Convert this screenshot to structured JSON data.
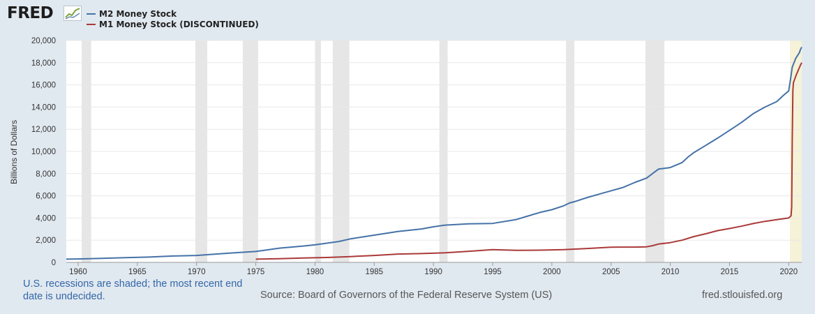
{
  "header": {
    "logo_text": "FRED",
    "logo_icon": "line-chart-icon"
  },
  "chart_data": {
    "type": "line",
    "title": "",
    "xlabel": "",
    "ylabel": "Billions of Dollars",
    "xlim": [
      1959,
      2021.1
    ],
    "ylim": [
      0,
      20000
    ],
    "yticks": [
      0,
      2000,
      4000,
      6000,
      8000,
      10000,
      12000,
      14000,
      16000,
      18000,
      20000
    ],
    "ytick_labels": [
      "0",
      "2,000",
      "4,000",
      "6,000",
      "8,000",
      "10,000",
      "12,000",
      "14,000",
      "16,000",
      "18,000",
      "20,000"
    ],
    "xticks": [
      1960,
      1965,
      1970,
      1975,
      1980,
      1985,
      1990,
      1995,
      2000,
      2005,
      2010,
      2015,
      2020
    ],
    "xtick_labels": [
      "1960",
      "1965",
      "1970",
      "1975",
      "1980",
      "1985",
      "1990",
      "1995",
      "2000",
      "2005",
      "2010",
      "2015",
      "2020"
    ],
    "grid": true,
    "recessions": [
      [
        1960.3,
        1961.1
      ],
      [
        1969.9,
        1970.9
      ],
      [
        1973.9,
        1975.2
      ],
      [
        1980.0,
        1980.5
      ],
      [
        1981.5,
        1982.9
      ],
      [
        1990.5,
        1991.2
      ],
      [
        2001.2,
        2001.9
      ],
      [
        2007.9,
        2009.5
      ]
    ],
    "pending_recession": [
      2020.1,
      2021.1
    ],
    "series": [
      {
        "name": "M2 Money Stock",
        "color": "#4572a7",
        "x": [
          1959,
          1960,
          1962,
          1964,
          1966,
          1968,
          1970,
          1971,
          1973,
          1975,
          1977,
          1979,
          1980,
          1982,
          1983,
          1985,
          1987,
          1989,
          1990,
          1991,
          1993,
          1995,
          1997,
          1998,
          1999,
          2000,
          2001,
          2001.5,
          2002,
          2003,
          2004,
          2005,
          2006,
          2007,
          2008,
          2008.5,
          2009,
          2010,
          2011,
          2011.5,
          2012,
          2013,
          2014,
          2015,
          2016,
          2017,
          2018,
          2019,
          2019.5,
          2020,
          2020.15,
          2020.3,
          2020.6,
          2020.9,
          2021.0,
          2021.1
        ],
        "values": [
          290,
          310,
          360,
          420,
          480,
          570,
          620,
          700,
          850,
          980,
          1280,
          1470,
          1580,
          1880,
          2120,
          2450,
          2780,
          3010,
          3210,
          3360,
          3480,
          3510,
          3860,
          4180,
          4500,
          4750,
          5100,
          5350,
          5500,
          5850,
          6150,
          6450,
          6750,
          7200,
          7600,
          8000,
          8400,
          8550,
          9000,
          9500,
          9900,
          10550,
          11200,
          11900,
          12600,
          13400,
          14000,
          14500,
          15000,
          15450,
          16500,
          17600,
          18400,
          18900,
          19200,
          19400
        ]
      },
      {
        "name": "M1 Money Stock (DISCONTINUED)",
        "color": "#aa3939",
        "x": [
          1975,
          1977,
          1979,
          1981,
          1983,
          1985,
          1987,
          1989,
          1991,
          1993,
          1995,
          1997,
          1999,
          2001,
          2003,
          2005,
          2007,
          2008,
          2008.5,
          2009,
          2010,
          2011,
          2012,
          2013,
          2014,
          2015,
          2016,
          2017,
          2018,
          2019,
          2020.0,
          2020.2,
          2020.25,
          2020.3,
          2020.35,
          2020.4,
          2020.6,
          2020.8,
          2021.0,
          2021.1
        ],
        "values": [
          290,
          330,
          390,
          440,
          520,
          620,
          750,
          790,
          860,
          1000,
          1150,
          1080,
          1100,
          1150,
          1250,
          1370,
          1380,
          1400,
          1500,
          1650,
          1780,
          2000,
          2330,
          2580,
          2860,
          3050,
          3260,
          3500,
          3700,
          3850,
          4000,
          4200,
          5000,
          11000,
          15500,
          16200,
          16800,
          17300,
          17800,
          18000
        ]
      }
    ]
  },
  "footer": {
    "note": "U.S. recessions are shaded; the most recent end date is undecided.",
    "source": "Source: Board of Governors of the Federal Reserve System (US)",
    "url": "fred.stlouisfed.org"
  }
}
